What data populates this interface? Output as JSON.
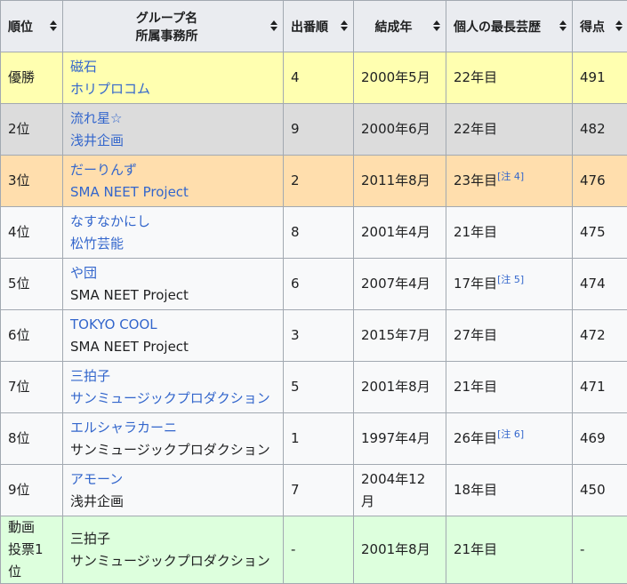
{
  "headers": {
    "rank": "順位",
    "group": "グループ名",
    "agency": "所属事務所",
    "order": "出番順",
    "formed": "結成年",
    "career": "個人の最長芸歴",
    "score": "得点"
  },
  "rows": [
    {
      "rank": "優勝",
      "group": "磁石",
      "agency": "ホリプロコム",
      "order": "4",
      "formed": "2000年5月",
      "career": "22年目",
      "note": "",
      "score": "491"
    },
    {
      "rank": "2位",
      "group": "流れ星☆",
      "agency": "浅井企画",
      "order": "9",
      "formed": "2000年6月",
      "career": "22年目",
      "note": "",
      "score": "482"
    },
    {
      "rank": "3位",
      "group": "だーりんず",
      "agency": "SMA NEET Project",
      "order": "2",
      "formed": "2011年8月",
      "career": "23年目",
      "note": "[注 4]",
      "score": "476"
    },
    {
      "rank": "4位",
      "group": "なすなかにし",
      "agency": "松竹芸能",
      "order": "8",
      "formed": "2001年4月",
      "career": "21年目",
      "note": "",
      "score": "475"
    },
    {
      "rank": "5位",
      "group": "や団",
      "agency": "SMA NEET Project",
      "order": "6",
      "formed": "2007年4月",
      "career": "17年目",
      "note": "[注 5]",
      "score": "474"
    },
    {
      "rank": "6位",
      "group": "TOKYO COOL",
      "agency": "SMA NEET Project",
      "order": "3",
      "formed": "2015年7月",
      "career": "27年目",
      "note": "",
      "score": "472"
    },
    {
      "rank": "7位",
      "group": "三拍子",
      "agency": "サンミュージックプロダクション",
      "order": "5",
      "formed": "2001年8月",
      "career": "21年目",
      "note": "",
      "score": "471"
    },
    {
      "rank": "8位",
      "group": "エルシャラカーニ",
      "agency": "サンミュージックプロダクション",
      "order": "1",
      "formed": "1997年4月",
      "career": "26年目",
      "note": "[注 6]",
      "score": "469"
    },
    {
      "rank": "9位",
      "group": "アモーン",
      "agency": "浅井企画",
      "order": "7",
      "formed": "2004年12月",
      "career": "18年目",
      "note": "",
      "score": "450"
    },
    {
      "rank_line1": "動画",
      "rank_line2": "投票1位",
      "group": "三拍子",
      "agency": "サンミュージックプロダクション",
      "order": "-",
      "formed": "2001年8月",
      "career": "21年目",
      "note": "",
      "score": "-"
    }
  ],
  "colors": {
    "gold": "#ffffb0",
    "silver": "#dcdcdc",
    "bronze": "#ffdead",
    "plain": "#f8f9fa",
    "green": "#ddffdd",
    "link": "#3366cc",
    "header": "#eaecf0"
  },
  "icons": {
    "sort": "sort-arrows-icon"
  }
}
